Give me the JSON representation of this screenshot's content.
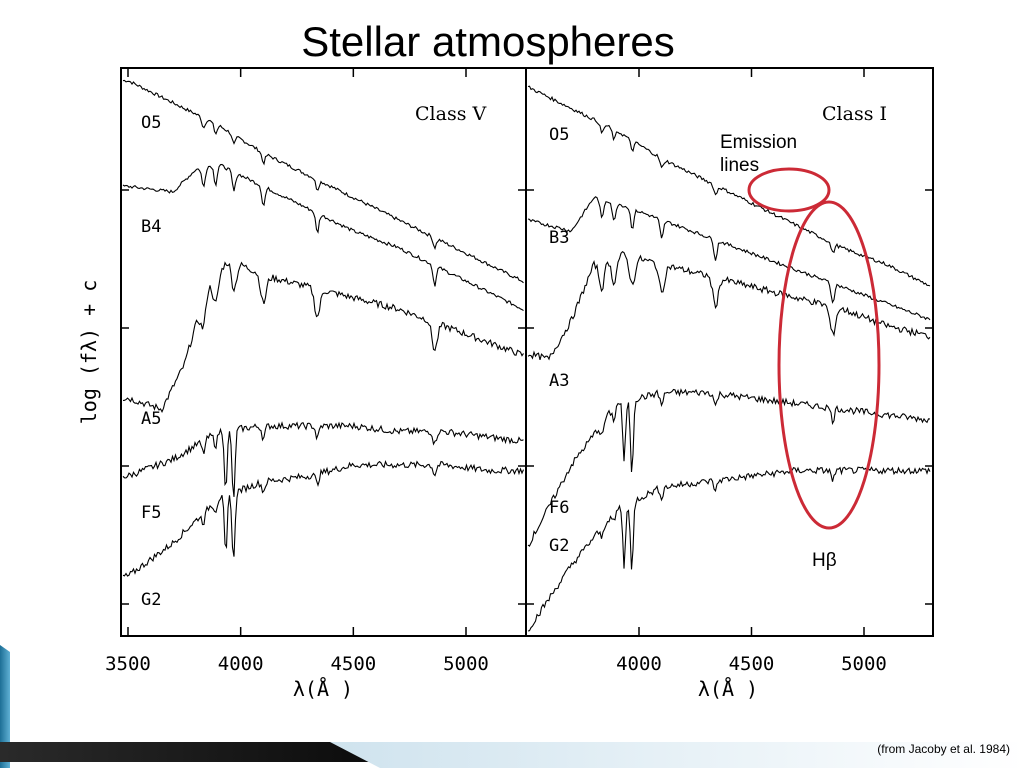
{
  "slide": {
    "title": "Stellar atmospheres",
    "citation": "(from Jacoby et al. 1984)",
    "accent_color": "#cc2a36"
  },
  "chart_data": {
    "type": "line",
    "ylabel": "log (fλ) + c",
    "panels": [
      {
        "title": "Class V",
        "xlabel": "λ(Å )",
        "xlim": [
          3500,
          5300
        ],
        "x_ticks": [
          "3500",
          "4000",
          "4500",
          "5000"
        ],
        "spectra": [
          {
            "name": "O5",
            "x": [
              3500,
              3700,
              3900,
              4100,
              4300,
              4500,
              4700,
              4900,
              5100,
              5300
            ],
            "y": [
              0.99,
              0.95,
              0.91,
              0.86,
              0.82,
              0.78,
              0.74,
              0.7,
              0.66,
              0.62
            ]
          },
          {
            "name": "B4",
            "x": [
              3500,
              3700,
              3800,
              3900,
              4100,
              4300,
              4500,
              4700,
              4900,
              5100,
              5300
            ],
            "y": [
              0.8,
              0.79,
              0.83,
              0.84,
              0.8,
              0.76,
              0.72,
              0.69,
              0.65,
              0.61,
              0.57
            ]
          },
          {
            "name": "A5",
            "x": [
              3500,
              3650,
              3750,
              3850,
              3950,
              4100,
              4300,
              4500,
              4700,
              4900,
              5100,
              5300
            ],
            "y": [
              0.42,
              0.4,
              0.48,
              0.62,
              0.67,
              0.64,
              0.62,
              0.6,
              0.58,
              0.55,
              0.52,
              0.49
            ]
          },
          {
            "name": "F5",
            "x": [
              3500,
              3700,
              3900,
              4100,
              4300,
              4500,
              4700,
              4900,
              5100,
              5300
            ],
            "y": [
              0.28,
              0.31,
              0.36,
              0.37,
              0.37,
              0.37,
              0.36,
              0.36,
              0.35,
              0.34
            ]
          },
          {
            "name": "G2",
            "x": [
              3500,
              3700,
              3900,
              4100,
              4300,
              4500,
              4700,
              4900,
              5100,
              5300
            ],
            "y": [
              0.1,
              0.16,
              0.24,
              0.27,
              0.28,
              0.3,
              0.3,
              0.3,
              0.29,
              0.29
            ]
          }
        ],
        "line_centers": [
          3835,
          3889,
          3970,
          4101,
          4340,
          4861
        ],
        "spectral_type_labels": [
          "O5",
          "B4",
          "A5",
          "F5",
          "G2"
        ]
      },
      {
        "title": "Class I",
        "xlabel": "λ(Å )",
        "xlim": [
          3500,
          5300
        ],
        "x_ticks": [
          "4000",
          "4500",
          "5000"
        ],
        "spectra": [
          {
            "name": "O5",
            "x": [
              3500,
              3700,
              3900,
              4100,
              4300,
              4500,
              4700,
              4900,
              5100,
              5300
            ],
            "y": [
              0.98,
              0.94,
              0.9,
              0.85,
              0.81,
              0.77,
              0.73,
              0.69,
              0.66,
              0.62
            ]
          },
          {
            "name": "B3",
            "x": [
              3500,
              3700,
              3800,
              3900,
              4100,
              4300,
              4500,
              4700,
              4900,
              5100,
              5300
            ],
            "y": [
              0.74,
              0.72,
              0.78,
              0.77,
              0.74,
              0.71,
              0.68,
              0.65,
              0.62,
              0.59,
              0.56
            ]
          },
          {
            "name": "A3",
            "x": [
              3500,
              3600,
              3700,
              3800,
              3900,
              4100,
              4300,
              4500,
              4700,
              4900,
              5100,
              5300
            ],
            "y": [
              0.5,
              0.49,
              0.56,
              0.66,
              0.68,
              0.66,
              0.64,
              0.62,
              0.6,
              0.58,
              0.55,
              0.53
            ]
          },
          {
            "name": "F6",
            "x": [
              3500,
              3700,
              3900,
              4100,
              4300,
              4500,
              4700,
              4900,
              5100,
              5300
            ],
            "y": [
              0.15,
              0.3,
              0.41,
              0.43,
              0.43,
              0.42,
              0.41,
              0.4,
              0.39,
              0.38
            ]
          },
          {
            "name": "G2",
            "x": [
              3500,
              3700,
              3900,
              4100,
              4300,
              4500,
              4700,
              4900,
              5100,
              5300
            ],
            "y": [
              0.0,
              0.12,
              0.22,
              0.26,
              0.27,
              0.28,
              0.29,
              0.29,
              0.29,
              0.29
            ]
          }
        ],
        "line_centers": [
          3835,
          3889,
          3970,
          4101,
          4340,
          4861
        ],
        "spectral_type_labels": [
          "O5",
          "B3",
          "A3",
          "F6",
          "G2"
        ]
      }
    ],
    "annotations": [
      {
        "text": "Emission lines",
        "target": "O5 Class I, ~4600-4700 Å"
      },
      {
        "text": "Hβ",
        "target": "4861 Å absorption line, Class I"
      }
    ]
  }
}
